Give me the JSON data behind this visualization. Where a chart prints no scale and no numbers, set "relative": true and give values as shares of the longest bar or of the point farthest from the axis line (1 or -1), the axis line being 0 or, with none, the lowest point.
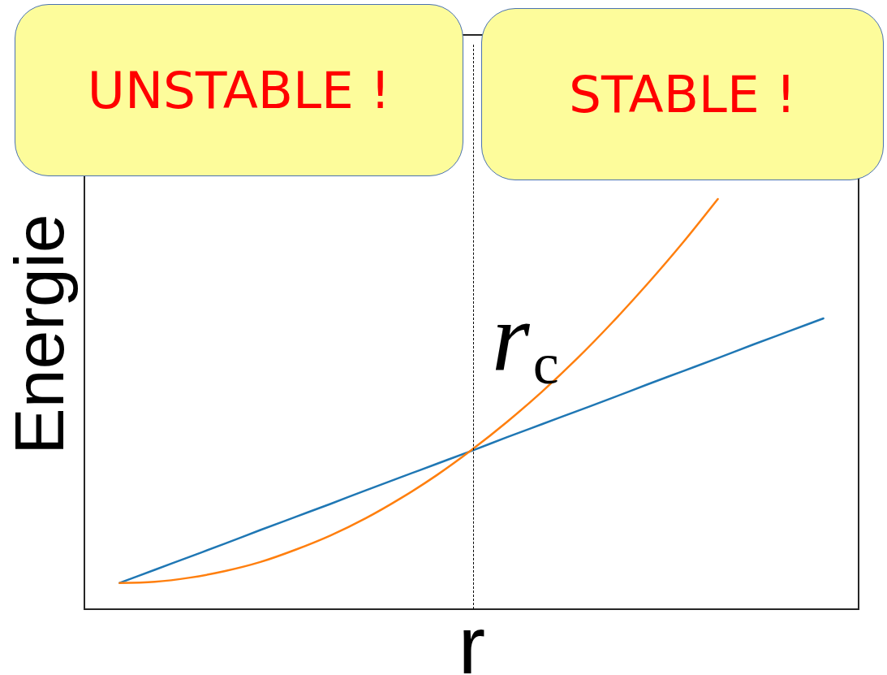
{
  "chart_data": {
    "type": "line",
    "xlabel": "r",
    "ylabel": "Energie",
    "relative": true,
    "tick_labels": false,
    "categories": [
      null,
      null,
      null,
      null,
      null,
      null,
      null,
      null,
      null,
      null,
      null,
      null,
      null,
      null,
      null,
      null,
      null,
      null,
      null,
      null,
      null
    ],
    "series": [
      {
        "color": "#1f77b4",
        "values": [
          0.064,
          0.096,
          0.128,
          0.16,
          0.193,
          0.225,
          0.257,
          0.29,
          0.322,
          0.354,
          0.386,
          0.419,
          0.451,
          0.483,
          0.515,
          0.548,
          0.58,
          0.612,
          0.645,
          0.677,
          0.709
        ]
      },
      {
        "color": "#ff7f0e",
        "values": [
          0.064,
          0.067,
          0.077,
          0.093,
          0.115,
          0.145,
          0.18,
          0.222,
          0.271,
          0.326,
          0.388,
          0.456,
          0.53,
          0.611,
          0.699,
          0.793,
          0.893,
          1.0,
          null,
          null,
          null
        ]
      }
    ],
    "annotations": [
      "UNSTABLE !",
      "STABLE !",
      "r$_{c}$"
    ]
  }
}
